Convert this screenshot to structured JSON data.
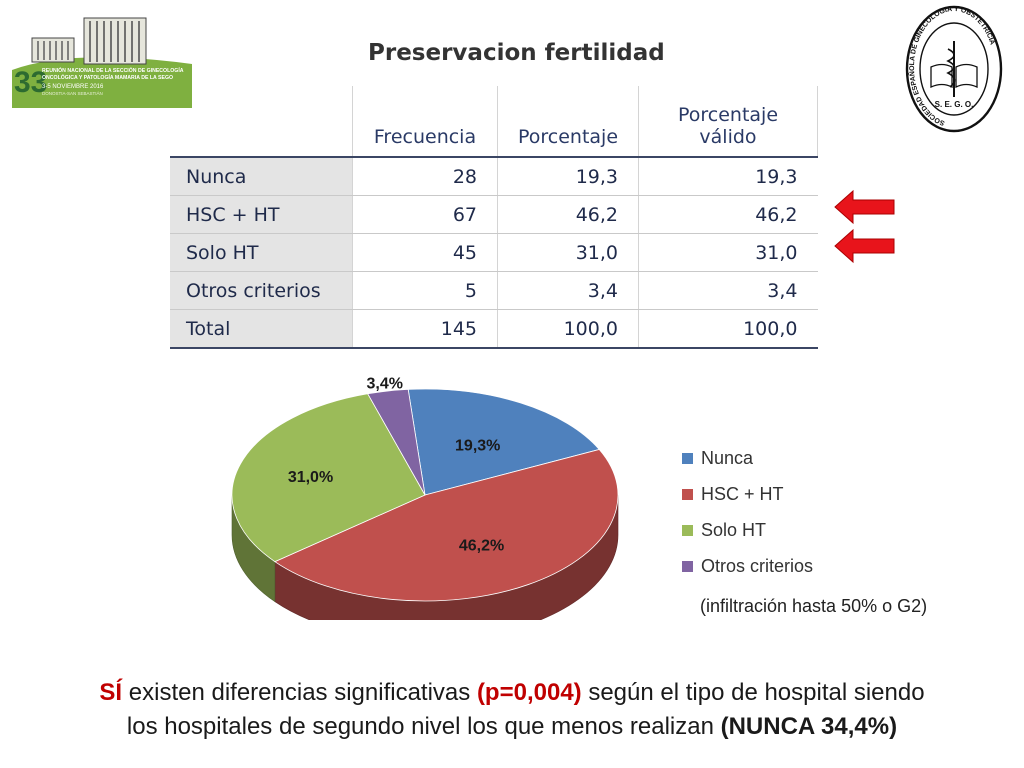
{
  "title": "Preservacion fertilidad",
  "logo": {
    "number": "33",
    "line1": "REUNIÓN NACIONAL DE LA SECCIÓN DE GINECOLOGÍA",
    "line2": "ONCOLÓGICA Y PATOLOGÍA MAMARIA DE LA SEGO",
    "dates": "3-5 NOVIEMBRE 2016",
    "city": "DONOSTIA-SAN SEBASTIÁN"
  },
  "seal": {
    "ring_text": "SOCIEDAD ESPAÑOLA DE GINECOLOGIA Y OBSTETRICIA",
    "acronym": "S. E. G. O."
  },
  "table": {
    "headers": [
      "Frecuencia",
      "Porcentaje",
      "Porcentaje",
      "válido"
    ],
    "rows": [
      {
        "label": "Nunca",
        "freq": "28",
        "pct": "19,3",
        "valid": "19,3"
      },
      {
        "label": "HSC + HT",
        "freq": "67",
        "pct": "46,2",
        "valid": "46,2"
      },
      {
        "label": "Solo HT",
        "freq": "45",
        "pct": "31,0",
        "valid": "31,0"
      },
      {
        "label": "Otros criterios",
        "freq": "5",
        "pct": "3,4",
        "valid": "3,4"
      },
      {
        "label": "Total",
        "freq": "145",
        "pct": "100,0",
        "valid": "100,0"
      }
    ]
  },
  "arrow_color": "#e8141b",
  "chart_data": {
    "type": "pie",
    "style": "3d",
    "categories": [
      "Nunca",
      "HSC + HT",
      "Solo HT",
      "Otros criterios"
    ],
    "values": [
      19.3,
      46.2,
      31.0,
      3.4
    ],
    "data_labels": [
      "19,3%",
      "46,2%",
      "31,0%",
      "3,4%"
    ],
    "colors": [
      "#4f81bd",
      "#c0504d",
      "#9bbb59",
      "#8064a2"
    ],
    "legend_position": "right"
  },
  "footnote": "(infiltración hasta 50% o G2)",
  "conclusion": {
    "p1": "SÍ",
    "p2": " existen diferencias significativas ",
    "p3": "(p=0,004)",
    "p4": " según el tipo de hospital siendo",
    "p5": "los hospitales de segundo nivel los que menos realizan ",
    "p6": "(NUNCA  34,4%)"
  }
}
